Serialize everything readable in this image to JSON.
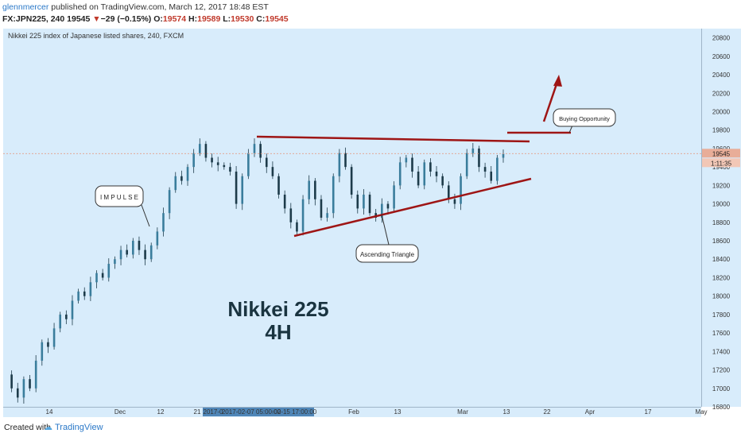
{
  "header": {
    "user": "glennmercer",
    "published": " published on TradingView.com, March 12, 2017 18:48 EST",
    "symbol": "FX:JPN225, 240",
    "last": "19545",
    "change_arrow": "▼",
    "change": "−29 (−0.15%)",
    "o_label": "O:",
    "o_value": "19574",
    "h_label": "H:",
    "h_value": "19589",
    "l_label": "L:",
    "l_value": "19530",
    "c_label": "C:",
    "c_value": "19545"
  },
  "chart_data": {
    "type": "candlestick",
    "title": "Nikkei 225 index of Japanese listed shares, 240, FXCM",
    "watermark_line1": "Nikkei 225",
    "watermark_line2": "4H",
    "ylim": [
      16800,
      20900
    ],
    "yticks": [
      16800,
      17000,
      17200,
      17400,
      17600,
      17800,
      18000,
      18200,
      18400,
      18600,
      18800,
      19000,
      19200,
      19400,
      19600,
      19800,
      20000,
      20200,
      20400,
      20600,
      20800
    ],
    "xticks": [
      "14",
      "Dec",
      "12",
      "21",
      "2017-0",
      "2017-02-07 05:00:00",
      "-02-15 17:00:00",
      "Feb",
      "13",
      "Mar",
      "13",
      "22",
      "Apr",
      "17",
      "May"
    ],
    "price_label": "19545",
    "countdown_label": "1:11:35",
    "price_path": [
      [
        0,
        17150
      ],
      [
        4,
        17000
      ],
      [
        8,
        16900
      ],
      [
        12,
        17100
      ],
      [
        16,
        17000
      ],
      [
        20,
        17300
      ],
      [
        24,
        17500
      ],
      [
        28,
        17450
      ],
      [
        32,
        17650
      ],
      [
        36,
        17800
      ],
      [
        40,
        17750
      ],
      [
        44,
        17950
      ],
      [
        48,
        18050
      ],
      [
        52,
        18000
      ],
      [
        56,
        18150
      ],
      [
        60,
        18250
      ],
      [
        64,
        18200
      ],
      [
        68,
        18350
      ],
      [
        72,
        18400
      ],
      [
        76,
        18500
      ],
      [
        80,
        18450
      ],
      [
        84,
        18600
      ],
      [
        88,
        18500
      ],
      [
        92,
        18400
      ],
      [
        96,
        18550
      ],
      [
        100,
        18700
      ],
      [
        104,
        18900
      ],
      [
        108,
        19150
      ],
      [
        112,
        19300
      ],
      [
        116,
        19250
      ],
      [
        120,
        19400
      ],
      [
        124,
        19550
      ],
      [
        128,
        19650
      ],
      [
        132,
        19500
      ],
      [
        136,
        19450
      ],
      [
        140,
        19420
      ],
      [
        144,
        19400
      ],
      [
        148,
        19350
      ],
      [
        152,
        19000
      ],
      [
        156,
        19300
      ],
      [
        160,
        19550
      ],
      [
        164,
        19650
      ],
      [
        168,
        19500
      ],
      [
        172,
        19400
      ],
      [
        176,
        19300
      ],
      [
        180,
        19100
      ],
      [
        184,
        18950
      ],
      [
        188,
        18800
      ],
      [
        192,
        18700
      ],
      [
        196,
        19050
      ],
      [
        200,
        19250
      ],
      [
        204,
        19050
      ],
      [
        208,
        18850
      ],
      [
        212,
        18900
      ],
      [
        216,
        19300
      ],
      [
        220,
        19550
      ],
      [
        224,
        19400
      ],
      [
        228,
        19100
      ],
      [
        232,
        18950
      ],
      [
        236,
        19100
      ],
      [
        240,
        18900
      ],
      [
        244,
        18850
      ],
      [
        248,
        19000
      ],
      [
        252,
        18950
      ],
      [
        256,
        19200
      ],
      [
        260,
        19450
      ],
      [
        264,
        19500
      ],
      [
        268,
        19350
      ],
      [
        272,
        19200
      ],
      [
        276,
        19450
      ],
      [
        280,
        19350
      ],
      [
        284,
        19300
      ],
      [
        288,
        19200
      ],
      [
        292,
        19050
      ],
      [
        296,
        19000
      ],
      [
        300,
        19300
      ],
      [
        304,
        19550
      ],
      [
        308,
        19600
      ],
      [
        312,
        19400
      ],
      [
        316,
        19350
      ],
      [
        320,
        19250
      ],
      [
        324,
        19500
      ],
      [
        328,
        19545
      ]
    ],
    "annotations": {
      "impulse": "I M P U L S E",
      "ascending_triangle": "Ascending Triangle",
      "buying_opportunity": "Buying Opportunity"
    }
  },
  "footer": {
    "created_with": "Created with",
    "brand": "TradingView"
  }
}
